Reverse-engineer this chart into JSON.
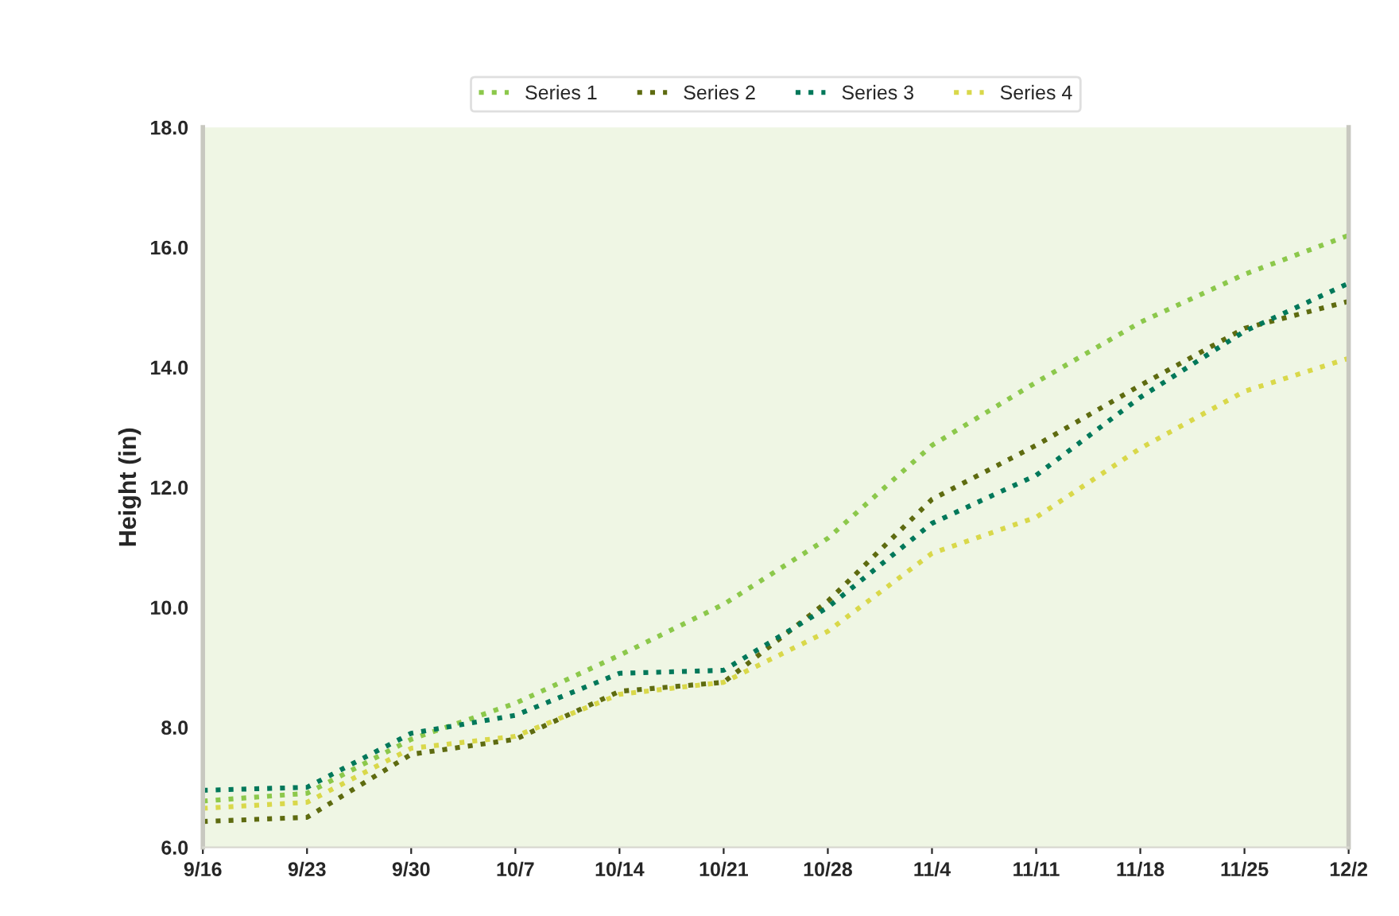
{
  "chart_data": {
    "type": "line",
    "ylabel": "Height (in)",
    "categories": [
      "9/16",
      "9/23",
      "9/30",
      "10/7",
      "10/14",
      "10/21",
      "10/28",
      "11/4",
      "11/11",
      "11/18",
      "11/25",
      "12/2"
    ],
    "series": [
      {
        "name": "Series 1",
        "color": "#8cc84b",
        "values": [
          6.77,
          6.9,
          7.8,
          8.4,
          9.2,
          10.05,
          11.15,
          12.7,
          13.75,
          14.75,
          15.55,
          16.2
        ]
      },
      {
        "name": "Series 2",
        "color": "#5e6b10",
        "values": [
          6.43,
          6.5,
          7.55,
          7.8,
          8.6,
          8.75,
          10.1,
          11.8,
          12.7,
          13.7,
          14.65,
          15.1
        ]
      },
      {
        "name": "Series 3",
        "color": "#00785a",
        "values": [
          6.95,
          7.0,
          7.9,
          8.2,
          8.9,
          8.95,
          10.0,
          11.4,
          12.2,
          13.5,
          14.6,
          15.4
        ]
      },
      {
        "name": "Series 4",
        "color": "#d9d84a",
        "values": [
          6.65,
          6.75,
          7.65,
          7.85,
          8.55,
          8.75,
          9.6,
          10.9,
          11.5,
          12.65,
          13.6,
          14.15
        ]
      }
    ],
    "ylim": [
      6,
      18
    ],
    "yticks": [
      {
        "value": 6,
        "label": "6.0"
      },
      {
        "value": 8,
        "label": "8.0"
      },
      {
        "value": 10,
        "label": "10.0"
      },
      {
        "value": 12,
        "label": "12.0"
      },
      {
        "value": 14,
        "label": "14.0"
      },
      {
        "value": 16,
        "label": "16.0"
      },
      {
        "value": 18,
        "label": "18.0"
      }
    ],
    "grid": false,
    "legend": "top",
    "line_style": "dotted"
  }
}
